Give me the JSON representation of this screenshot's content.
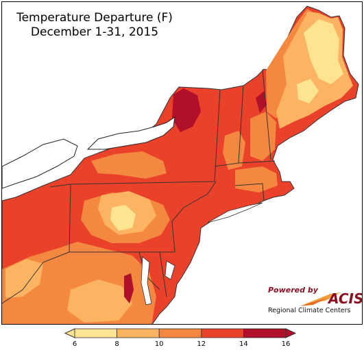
{
  "title": "Temperature Departure (F)",
  "subtitle": "December 1-31, 2015",
  "colors": {
    "water": "#ffffff",
    "class_6_8": "#fee391",
    "class_8_10": "#fdb462",
    "class_10_12": "#f58840",
    "class_12_14": "#e9412a",
    "class_14_16": "#b0102a",
    "borders": "#333333"
  },
  "legend": {
    "ticks": [
      "6",
      "8",
      "10",
      "12",
      "14",
      "16"
    ],
    "classes": [
      {
        "min": 6,
        "max": 8,
        "color": "#fee391"
      },
      {
        "min": 8,
        "max": 10,
        "color": "#fdb462"
      },
      {
        "min": 10,
        "max": 12,
        "color": "#f58840"
      },
      {
        "min": 12,
        "max": 14,
        "color": "#e9412a"
      },
      {
        "min": 14,
        "max": 16,
        "color": "#b0102a"
      }
    ]
  },
  "logo": {
    "powered_by": "Powered by",
    "acis": "ACIS",
    "rcc": "Regional Climate Centers"
  }
}
